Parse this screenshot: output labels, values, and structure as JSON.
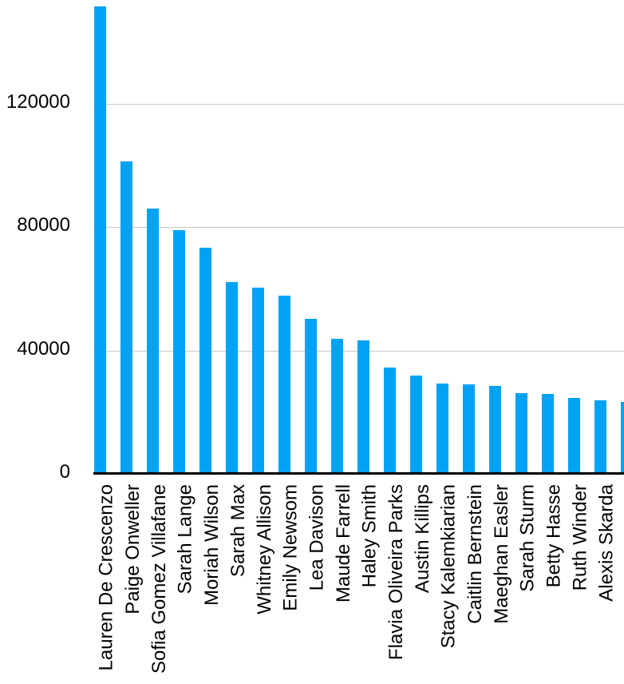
{
  "chart_data": {
    "type": "bar",
    "orientation": "vertical",
    "categories": [
      "Lauren De Crescenzo",
      "Paige Onweller",
      "Sofia Gomez Villafane",
      "Sarah Lange",
      "Moriah Wilson",
      "Sarah Max",
      "Whitney Allison",
      "Emily Newsom",
      "Lea Davison",
      "Maude Farrell",
      "Haley Smith",
      "Flavia Oliveira Parks",
      "Austin Killips",
      "Stacy Kalemkiarian",
      "Caitlin Bernstein",
      "Maeghan Easler",
      "Sarah Sturm",
      "Betty Hasse",
      "Ruth Winder",
      "Alexis Skarda"
    ],
    "values": [
      151700,
      101500,
      86000,
      79000,
      73300,
      62300,
      60500,
      57700,
      50400,
      43900,
      43400,
      34500,
      32000,
      29400,
      29100,
      28600,
      26200,
      26000,
      24700,
      23900
    ],
    "clipped_partial_bar": {
      "value": 23400,
      "label_visible": false
    },
    "y_ticks": [
      0,
      40000,
      80000,
      120000
    ],
    "ylim": [
      0,
      154000
    ],
    "grid": "horizontal",
    "legend": "none",
    "colors": {
      "bar": "#00A2F4",
      "gridline": "#C9C9C9",
      "axis": "#000000",
      "text": "#000000",
      "background": "#FFFFFF"
    }
  }
}
